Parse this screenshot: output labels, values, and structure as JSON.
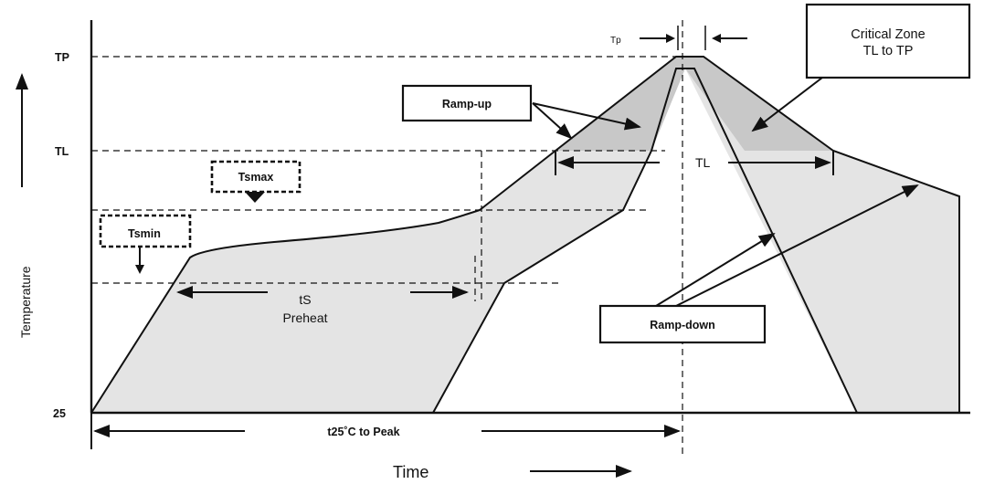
{
  "axes": {
    "y_title": "Temperature",
    "x_title": "Time",
    "y_ticks": [
      "TP",
      "TL",
      "25"
    ]
  },
  "labels": {
    "tp_marker": "Tp",
    "critical_zone": [
      "Critical Zone",
      "TL to TP"
    ],
    "ramp_up": "Ramp-up",
    "ramp_down": "Ramp-down",
    "tsmax": "Tsmax",
    "tsmin": "Tsmin",
    "tl_span": "TL",
    "ts": "tS",
    "preheat": "Preheat",
    "t25_to_peak": "t25˚C to Peak"
  },
  "colors": {
    "profile_fill": "#e4e4e4",
    "critical_zone_fill": "#c8c8c8",
    "line": "#111111"
  }
}
